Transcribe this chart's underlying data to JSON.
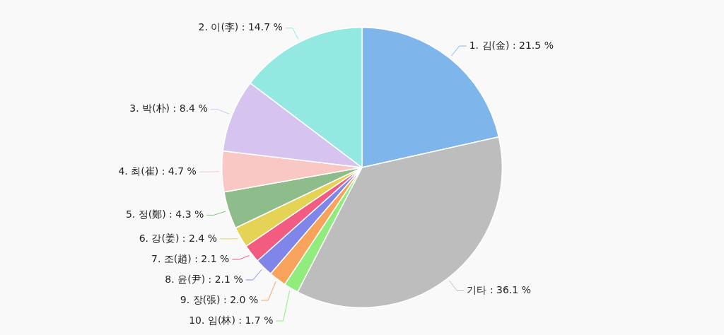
{
  "chart_data": {
    "type": "pie",
    "categories": [
      "1. 김(金)",
      "기타",
      "10. 임(林)",
      "9. 장(張)",
      "8. 윤(尹)",
      "7. 조(趙)",
      "6. 강(姜)",
      "5. 정(鄭)",
      "4. 최(崔)",
      "3. 박(朴)",
      "2. 이(李)"
    ],
    "values": [
      21.5,
      36.1,
      1.7,
      2.0,
      2.1,
      2.1,
      2.4,
      4.3,
      4.7,
      8.4,
      14.7
    ],
    "colors": [
      "#7eb6ec",
      "#bdbdbd",
      "#90ed7d",
      "#f7a35c",
      "#8085e9",
      "#f15c80",
      "#e4d354",
      "#8fbc8b",
      "#f9c7c4",
      "#d6c3ef",
      "#93e8e1"
    ],
    "value_labels": [
      "21.5 %",
      "36.1 %",
      "1.7 %",
      "2.0 %",
      "2.1 %",
      "2.1 %",
      "2.4 %",
      "4.3 %",
      "4.7 %",
      "8.4 %",
      "14.7 %"
    ]
  }
}
